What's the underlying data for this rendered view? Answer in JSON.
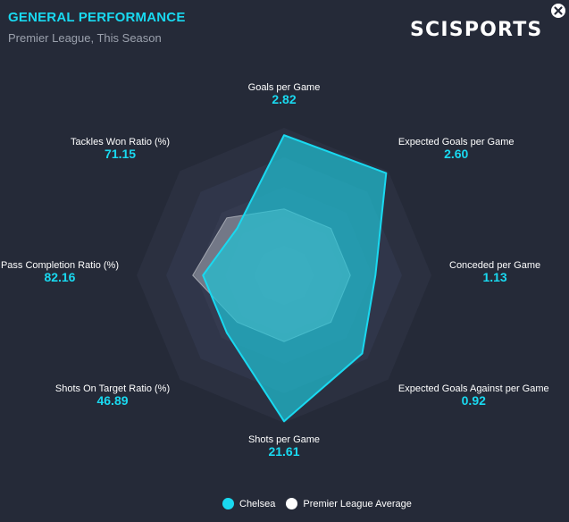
{
  "header": {
    "title": "GENERAL PERFORMANCE",
    "subtitle": "Premier League, This Season"
  },
  "brand": "SCISPORTS",
  "close_icon": "close-icon",
  "colors": {
    "accent": "#19d9f0",
    "team_fill": "#1fc3d6",
    "average_fill": "#bfc3c9",
    "background": "#252a38"
  },
  "legend": [
    {
      "label": "Chelsea",
      "color": "#19d9f0"
    },
    {
      "label": "Premier League Average",
      "color": "#ffffff"
    }
  ],
  "chart_data": {
    "type": "radar",
    "axes": [
      {
        "label": "Goals per Game",
        "value": "2.82"
      },
      {
        "label": "Expected Goals per Game",
        "value": "2.60"
      },
      {
        "label": "Conceded per Game",
        "value": "1.13"
      },
      {
        "label": "Expected Goals Against per Game",
        "value": "0.92"
      },
      {
        "label": "Shots per Game",
        "value": "21.61"
      },
      {
        "label": "Shots On Target Ratio (%)",
        "value": "46.89"
      },
      {
        "label": "Pass Completion Ratio (%)",
        "value": "82.16"
      },
      {
        "label": "Tackles Won Ratio (%)",
        "value": "71.15"
      }
    ],
    "series": [
      {
        "name": "Chelsea",
        "values": [
          2.82,
          2.6,
          1.13,
          0.92,
          21.61,
          46.89,
          82.16,
          71.15
        ],
        "relative": [
          0.95,
          0.98,
          0.62,
          0.75,
          0.99,
          0.55,
          0.55,
          0.45
        ]
      },
      {
        "name": "Premier League Average",
        "relative": [
          0.45,
          0.45,
          0.45,
          0.45,
          0.45,
          0.45,
          0.62,
          0.55
        ]
      }
    ],
    "grid_rings": 5
  }
}
